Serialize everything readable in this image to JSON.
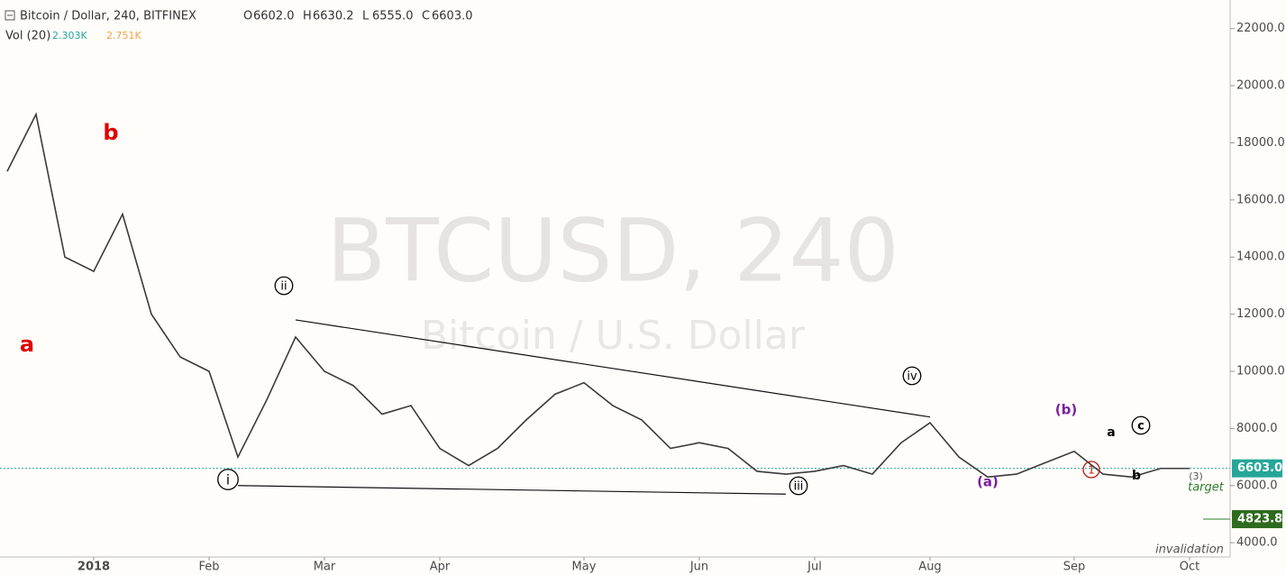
{
  "chart_data": {
    "type": "line",
    "title": "Bitcoin / Dollar, 240, BITFINEX",
    "ohlc": [
      {
        "label": "O",
        "value": "6602.0"
      },
      {
        "label": "H",
        "value": "6630.2"
      },
      {
        "label": "L",
        "value": "6555.0"
      },
      {
        "label": "C",
        "value": "6603.0"
      }
    ],
    "volume_label": "Vol (20)",
    "volume_values": [
      "2.303K",
      "2.751K"
    ],
    "watermark": "BTCUSD, 240",
    "watermark_subtitle": "Bitcoin / U.S. Dollar",
    "categories": [
      null,
      null,
      null,
      "2018",
      null,
      null,
      null,
      "Feb",
      null,
      null,
      null,
      "Mar",
      null,
      null,
      null,
      "Apr",
      null,
      null,
      null,
      null,
      "May",
      null,
      null,
      null,
      "Jun",
      null,
      null,
      null,
      "Jul",
      null,
      null,
      null,
      "Aug",
      null,
      null,
      null,
      null,
      "Sep",
      null,
      null,
      null,
      "Oct"
    ],
    "series": [
      {
        "name": "BTCUSD",
        "color": "#3a3a3a",
        "values": [
          17000,
          19000,
          14000,
          13500,
          15500,
          12000,
          10500,
          10000,
          7000,
          9000,
          11200,
          10000,
          9500,
          8500,
          8800,
          7300,
          6700,
          7300,
          8300,
          9200,
          9600,
          8800,
          8300,
          7300,
          7500,
          7300,
          6500,
          6400,
          6500,
          6700,
          6400,
          7500,
          8200,
          7000,
          6300,
          6400,
          6800,
          7200,
          6400,
          6300,
          6600,
          6600
        ]
      }
    ],
    "ylim": [
      3500,
      23000
    ],
    "yticks": [
      {
        "value": 4000,
        "label": "4000.0"
      },
      {
        "value": 6000,
        "label": "6000.0"
      },
      {
        "value": 8000,
        "label": "8000.0"
      },
      {
        "value": 10000,
        "label": "10000.0"
      },
      {
        "value": 12000,
        "label": "12000.0"
      },
      {
        "value": 14000,
        "label": "14000.0"
      },
      {
        "value": 16000,
        "label": "16000.0"
      },
      {
        "value": 18000,
        "label": "18000.0"
      },
      {
        "value": 20000,
        "label": "20000.0"
      },
      {
        "value": 22000,
        "label": "22000.0"
      }
    ],
    "last_price": {
      "value": 6603,
      "label": "6603.0"
    },
    "target_price": {
      "value": 4823.8,
      "label": "4823.8"
    },
    "trendlines": [
      {
        "from": {
          "x": 10,
          "y": 11800
        },
        "to": {
          "x": 32,
          "y": 8400
        }
      },
      {
        "from": {
          "x": 8,
          "y": 6000
        },
        "to": {
          "x": 27,
          "y": 5700
        }
      }
    ],
    "annotations": [
      {
        "text": "a",
        "color": "#e00000"
      },
      {
        "text": "b",
        "color": "#e00000"
      },
      {
        "text": "i",
        "color": "#000000"
      },
      {
        "text": "ii",
        "color": "#000000"
      },
      {
        "text": "iii",
        "color": "#000000"
      },
      {
        "text": "iv",
        "color": "#000000"
      },
      {
        "text": "(a)",
        "color": "#7b1fa2"
      },
      {
        "text": "(b)",
        "color": "#7b1fa2"
      },
      {
        "text": "1",
        "color": "#b71c1c"
      },
      {
        "text": "a",
        "color": "#000000"
      },
      {
        "text": "b",
        "color": "#000000"
      },
      {
        "text": "c",
        "color": "#000000"
      },
      {
        "text": "(3)",
        "color": "#555555"
      },
      {
        "text": "target",
        "color": "#2e7d32"
      },
      {
        "text": "invalidation",
        "color": "#555555"
      }
    ]
  }
}
